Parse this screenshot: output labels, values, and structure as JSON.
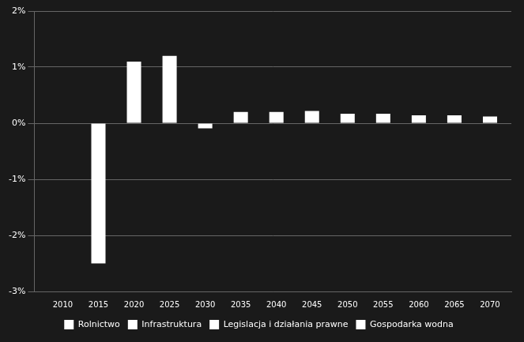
{
  "chart_data": {
    "type": "bar",
    "x": [
      2010,
      2015,
      2020,
      2025,
      2030,
      2035,
      2040,
      2045,
      2050,
      2055,
      2060,
      2065,
      2070
    ],
    "series": [
      {
        "name": "Rolnictwo",
        "color": "#ffffff",
        "values": [
          0.0,
          -2.5,
          1.1,
          1.2,
          -0.09,
          0.2,
          0.2,
          0.22,
          0.17,
          0.17,
          0.14,
          0.14,
          0.12
        ]
      },
      {
        "name": "Infrastruktura",
        "color": "#ffffff",
        "values": [
          null,
          null,
          null,
          null,
          null,
          null,
          null,
          null,
          null,
          null,
          null,
          null,
          null
        ]
      },
      {
        "name": "Legislacja i działania prawne",
        "color": "#ffffff",
        "values": [
          null,
          null,
          null,
          null,
          null,
          null,
          null,
          null,
          null,
          null,
          null,
          null,
          null
        ]
      },
      {
        "name": "Gospodarka wodna",
        "color": "#ffffff",
        "values": [
          null,
          null,
          null,
          null,
          null,
          null,
          null,
          null,
          null,
          null,
          null,
          null,
          null
        ]
      }
    ],
    "xlim": [
      2006,
      2073
    ],
    "xticks": [
      2010,
      2015,
      2020,
      2025,
      2030,
      2035,
      2040,
      2045,
      2050,
      2055,
      2060,
      2065,
      2070
    ],
    "ylim": [
      -3.0,
      2.0
    ],
    "yticks": [
      {
        "value": -3.0,
        "label": "-3%"
      },
      {
        "value": -2.0,
        "label": "-2%"
      },
      {
        "value": -1.0,
        "label": "-1%"
      },
      {
        "value": 0.0,
        "label": "0%"
      },
      {
        "value": 1.0,
        "label": "1%"
      },
      {
        "value": 2.0,
        "label": "2%"
      }
    ],
    "grid": true,
    "legend": "bottom"
  }
}
